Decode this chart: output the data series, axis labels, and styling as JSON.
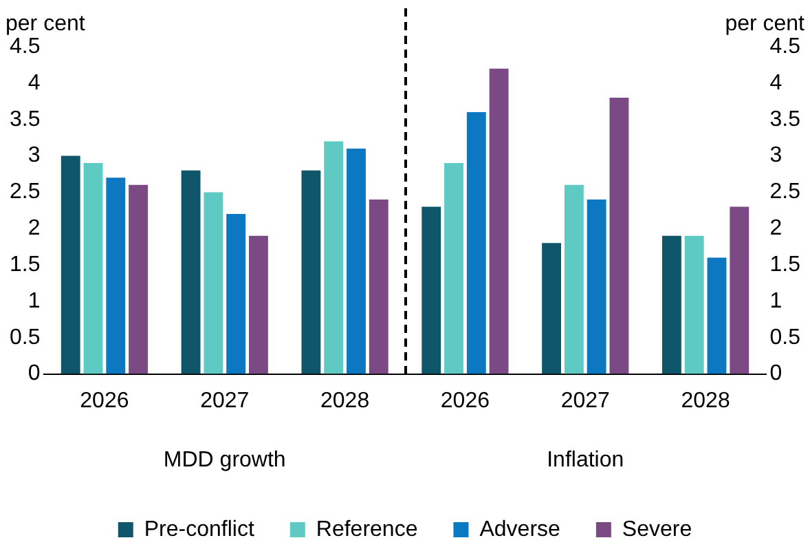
{
  "chart_data": {
    "type": "bar",
    "ylabel": "per cent",
    "y2label": "per cent",
    "categories": [
      "2026",
      "2027",
      "2028",
      "2026",
      "2027",
      "2028"
    ],
    "series": [
      {
        "name": "Pre-conflict",
        "color": "#0f566b",
        "values": [
          3.0,
          2.8,
          2.8,
          2.3,
          1.8,
          1.9
        ]
      },
      {
        "name": "Reference",
        "color": "#5fc9c4",
        "values": [
          2.9,
          2.5,
          3.2,
          2.9,
          2.6,
          1.9
        ]
      },
      {
        "name": "Adverse",
        "color": "#0b78c1",
        "values": [
          2.7,
          2.2,
          3.1,
          3.6,
          2.4,
          1.6
        ]
      },
      {
        "name": "Severe",
        "color": "#7b4a84",
        "values": [
          2.6,
          1.9,
          2.4,
          4.2,
          3.8,
          2.3
        ]
      }
    ],
    "ylim": [
      0,
      4.5
    ],
    "yticks": [
      0,
      0.5,
      1,
      1.5,
      2,
      2.5,
      3,
      3.5,
      4,
      4.5
    ],
    "y2lim": [
      0,
      4.5
    ],
    "y2ticks": [
      0,
      0.5,
      1,
      1.5,
      2,
      2.5,
      3,
      3.5,
      4,
      4.5
    ],
    "annotations": [
      "MDD growth",
      "Inflation"
    ],
    "grid": false,
    "legend": "bottom"
  }
}
